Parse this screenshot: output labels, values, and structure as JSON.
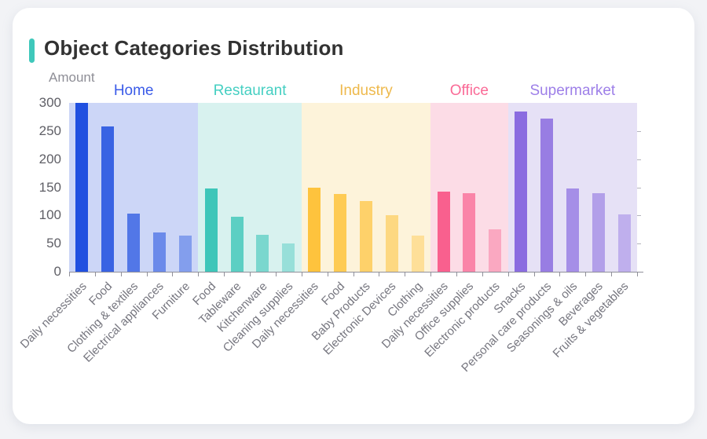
{
  "card": {
    "title": "Object Categories Distribution",
    "accent_color": "#3fc8bb"
  },
  "chart_data": {
    "type": "bar",
    "title": "Object Categories Distribution",
    "ylabel": "Amount",
    "xlabel": "",
    "ylim": [
      0,
      300
    ],
    "yticks": [
      0,
      50,
      100,
      150,
      200,
      250,
      300
    ],
    "grid": false,
    "group_header_position": "top",
    "bar_style": "opacity fades from dark to light within each group",
    "axis_color": "#90909a",
    "groups": [
      {
        "name": "Home",
        "label_color": "#3a5be8",
        "bar_color": "#2050e0",
        "band_color": "#ccd6f7",
        "categories": [
          "Daily necessities",
          "Food",
          "Clothing & textiles",
          "Electrical appliances",
          "Furniture"
        ],
        "values": [
          300,
          258,
          103,
          70,
          64
        ]
      },
      {
        "name": "Restaurant",
        "label_color": "#45cfc2",
        "bar_color": "#3ec6b9",
        "band_color": "#d8f2ef",
        "categories": [
          "Food",
          "Tableware",
          "Kitchenware",
          "Cleaning supplies"
        ],
        "values": [
          148,
          97,
          65,
          50
        ]
      },
      {
        "name": "Industry",
        "label_color": "#eeb94c",
        "bar_color": "#fec33d",
        "band_color": "#fdf3da",
        "categories": [
          "Daily necessities",
          "Food",
          "Baby Products",
          "Electronic Devices",
          "Clothing"
        ],
        "values": [
          150,
          138,
          126,
          100,
          64
        ]
      },
      {
        "name": "Office",
        "label_color": "#fa6a96",
        "bar_color": "#f9608e",
        "band_color": "#fcdce6",
        "categories": [
          "Daily necessities",
          "Office supplies",
          "Electronic products"
        ],
        "values": [
          142,
          139,
          75
        ]
      },
      {
        "name": "Supermarket",
        "label_color": "#9d7fe8",
        "bar_color": "#8a6ce0",
        "band_color": "#e6e1f6",
        "categories": [
          "Snacks",
          "Personal care products",
          "Seasonings & oils",
          "Beverages",
          "Fruits & vegetables"
        ],
        "values": [
          285,
          272,
          148,
          140,
          102
        ]
      }
    ]
  }
}
